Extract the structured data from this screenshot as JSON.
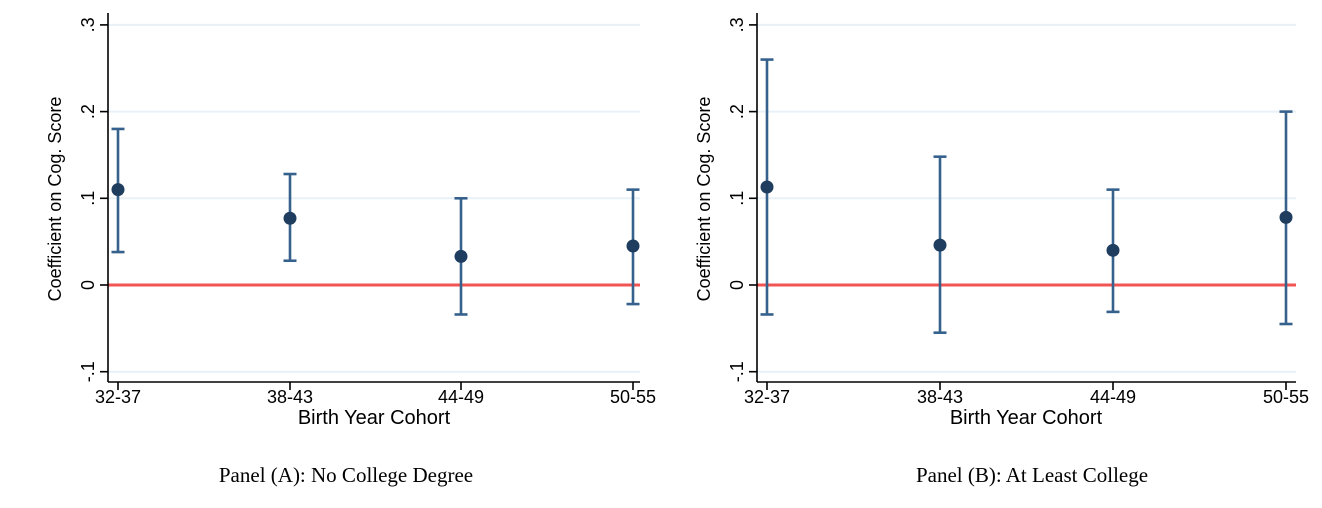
{
  "figure": {
    "background": "#ffffff",
    "axis_color": "#000000",
    "text_color": "#000000"
  },
  "chart_data": [
    {
      "type": "scatter",
      "subtype": "coefficient-plot-with-ci",
      "title": "Panel (A): No College Degree",
      "xlabel": "Birth Year Cohort",
      "ylabel": "Coefficient on Cog. Score",
      "categories": [
        "32-37",
        "38-43",
        "44-49",
        "50-55"
      ],
      "series": [
        {
          "name": "Coefficient on Cog. Score",
          "values": [
            0.11,
            0.077,
            0.033,
            0.045
          ],
          "ci_low": [
            0.038,
            0.028,
            -0.034,
            -0.022
          ],
          "ci_high": [
            0.18,
            0.128,
            0.1,
            0.11
          ]
        }
      ],
      "ytick_labels": [
        ".3",
        ".2",
        ".1",
        "0",
        "-.1"
      ],
      "ytick_values": [
        0.3,
        0.2,
        0.1,
        0,
        -0.1
      ],
      "ylim": [
        -0.112,
        0.314
      ],
      "grid": true,
      "legend": "none",
      "refline": {
        "value": 0,
        "color": "#f25453"
      },
      "colors": {
        "marker": "#1f3d5f",
        "ci": "#35618c",
        "grid": "#e8f1f7",
        "refline": "#f25453"
      }
    },
    {
      "type": "scatter",
      "subtype": "coefficient-plot-with-ci",
      "title": "Panel (B): At Least College",
      "xlabel": "Birth Year Cohort",
      "ylabel": "Coefficient on Cog. Score",
      "categories": [
        "32-37",
        "38-43",
        "44-49",
        "50-55"
      ],
      "series": [
        {
          "name": "Coefficient on Cog. Score",
          "values": [
            0.113,
            0.046,
            0.04,
            0.078
          ],
          "ci_low": [
            -0.034,
            -0.055,
            -0.031,
            -0.045
          ],
          "ci_high": [
            0.26,
            0.148,
            0.11,
            0.2
          ]
        }
      ],
      "ytick_labels": [
        ".3",
        ".2",
        ".1",
        "0",
        "-.1"
      ],
      "ytick_values": [
        0.3,
        0.2,
        0.1,
        0,
        -0.1
      ],
      "ylim": [
        -0.112,
        0.314
      ],
      "grid": true,
      "legend": "none",
      "refline": {
        "value": 0,
        "color": "#f25453"
      },
      "colors": {
        "marker": "#1f3d5f",
        "ci": "#35618c",
        "grid": "#e8f1f7",
        "refline": "#f25453"
      }
    }
  ]
}
